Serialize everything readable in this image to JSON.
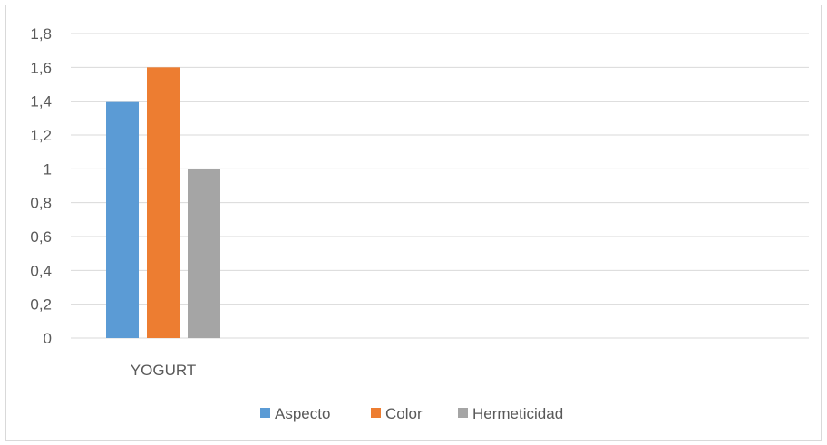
{
  "chart_data": {
    "type": "bar",
    "categories": [
      "YOGURT"
    ],
    "series": [
      {
        "name": "Aspecto",
        "values": [
          1.4
        ],
        "color": "#5b9bd5"
      },
      {
        "name": "Color",
        "values": [
          1.6
        ],
        "color": "#ed7d31"
      },
      {
        "name": "Hermeticidad",
        "values": [
          1.0
        ],
        "color": "#a5a5a5"
      }
    ],
    "title": "",
    "xlabel": "",
    "ylabel": "",
    "ylim": [
      0,
      1.8
    ],
    "yticks": [
      "0",
      "0,2",
      "0,4",
      "0,6",
      "0,8",
      "1",
      "1,2",
      "1,4",
      "1,6",
      "1,8"
    ],
    "grid": true,
    "legend_position": "bottom",
    "colors": {
      "gridline": "#d9d9d9",
      "text": "#595959",
      "border": "#d9d9d9"
    }
  }
}
